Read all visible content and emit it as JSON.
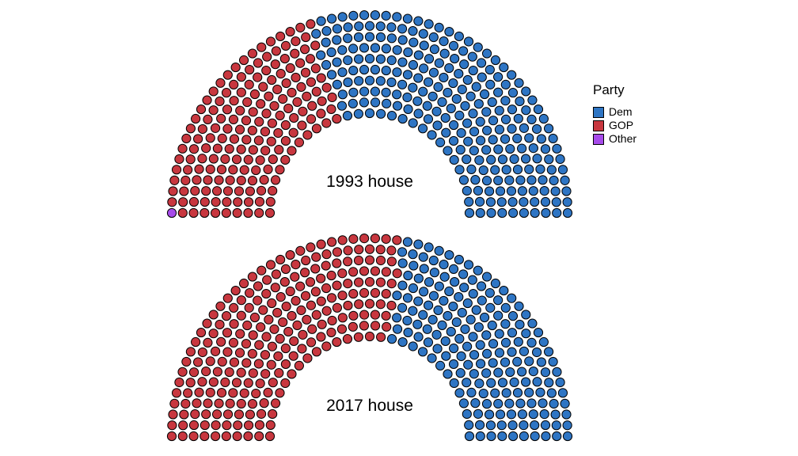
{
  "chart_data": [
    {
      "type": "parliament",
      "label": "1993 house",
      "rows": 10,
      "seats": [
        {
          "party": "Other",
          "count": 1
        },
        {
          "party": "GOP",
          "count": 176
        },
        {
          "party": "Dem",
          "count": 258
        }
      ]
    },
    {
      "type": "parliament",
      "label": "2017 house",
      "rows": 10,
      "seats": [
        {
          "party": "GOP",
          "count": 241
        },
        {
          "party": "Dem",
          "count": 194
        }
      ]
    }
  ],
  "legend": {
    "title": "Party",
    "placement": "right",
    "items": [
      {
        "label": "Dem",
        "color": "#2E75C4"
      },
      {
        "label": "GOP",
        "color": "#C8373F"
      },
      {
        "label": "Other",
        "color": "#A64BEA"
      }
    ]
  }
}
